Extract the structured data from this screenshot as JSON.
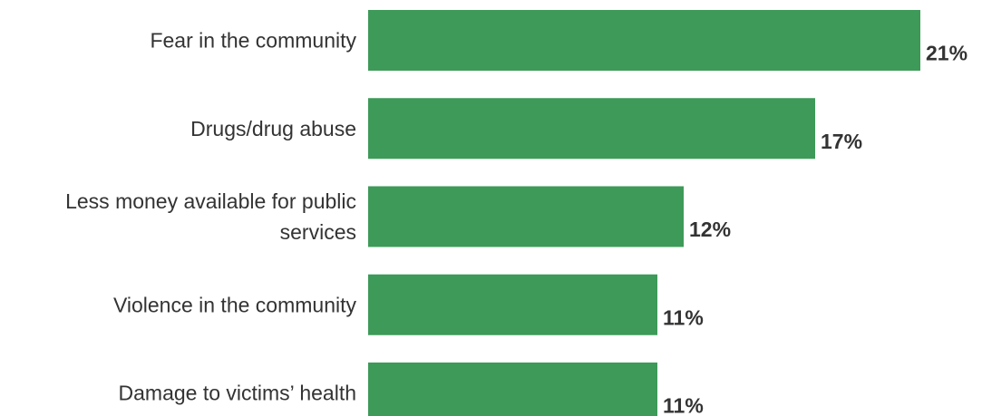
{
  "chart_data": {
    "type": "bar",
    "orientation": "horizontal",
    "categories": [
      [
        "Fear in the community"
      ],
      [
        "Drugs/drug abuse"
      ],
      [
        "Less money available for public",
        "services"
      ],
      [
        "Violence in the community"
      ],
      [
        "Damage to victims’ health"
      ]
    ],
    "values": [
      21,
      17,
      12,
      11,
      11
    ],
    "value_labels": [
      "21%",
      "17%",
      "12%",
      "11%",
      "11%"
    ],
    "unit": "%",
    "bar_color": "#3d9a58",
    "grid": false,
    "legend": "none"
  }
}
